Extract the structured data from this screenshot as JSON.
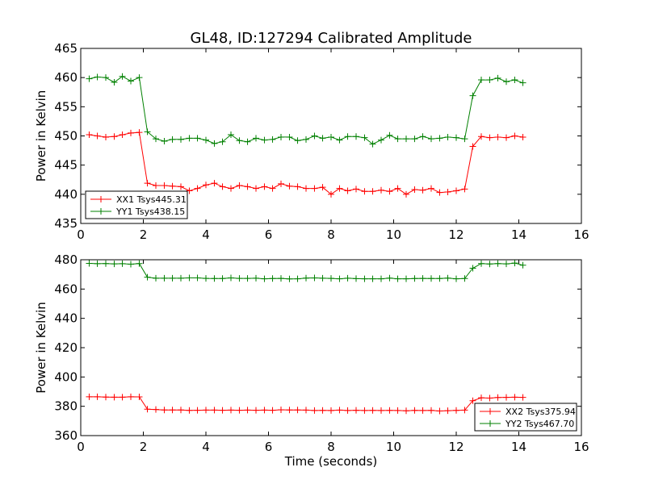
{
  "chart_data": [
    {
      "type": "line",
      "title": "GL48, ID:127294 Calibrated Amplitude",
      "xlabel": "",
      "ylabel": "Power in Kelvin",
      "xlim": [
        0,
        16
      ],
      "ylim": [
        435,
        465
      ],
      "xticks": [
        0,
        2,
        4,
        6,
        8,
        10,
        12,
        14,
        16
      ],
      "yticks": [
        435,
        440,
        445,
        450,
        455,
        460,
        465
      ],
      "grid": false,
      "legend": "lower-left",
      "x": [
        0.27,
        0.53,
        0.8,
        1.07,
        1.33,
        1.6,
        1.87,
        2.13,
        2.4,
        2.67,
        2.93,
        3.2,
        3.47,
        3.73,
        4.0,
        4.27,
        4.53,
        4.8,
        5.07,
        5.33,
        5.6,
        5.87,
        6.13,
        6.4,
        6.67,
        6.93,
        7.2,
        7.47,
        7.73,
        8.0,
        8.27,
        8.53,
        8.8,
        9.07,
        9.33,
        9.6,
        9.87,
        10.13,
        10.4,
        10.67,
        10.93,
        11.2,
        11.47,
        11.73,
        12.0,
        12.27,
        12.53,
        12.8,
        13.07,
        13.33,
        13.6,
        13.87,
        14.13
      ],
      "series": [
        {
          "name": "XX1 Tsys445.31",
          "color": "#ff0000",
          "values": [
            450.2,
            450.0,
            449.8,
            449.9,
            450.2,
            450.5,
            450.6,
            441.9,
            441.5,
            441.5,
            441.4,
            441.3,
            440.6,
            441.0,
            441.6,
            441.9,
            441.3,
            441.0,
            441.5,
            441.3,
            441.0,
            441.3,
            441.0,
            441.8,
            441.4,
            441.3,
            441.0,
            441.0,
            441.2,
            440.0,
            441.0,
            440.6,
            440.9,
            440.5,
            440.5,
            440.7,
            440.5,
            441.0,
            440.0,
            440.8,
            440.7,
            441.0,
            440.3,
            440.4,
            440.6,
            440.9,
            448.2,
            449.9,
            449.7,
            449.8,
            449.7,
            450.0,
            449.8
          ]
        },
        {
          "name": "YY1 Tsys438.15",
          "color": "#008000",
          "values": [
            459.8,
            460.1,
            460.0,
            459.2,
            460.2,
            459.4,
            460.0,
            450.7,
            449.5,
            449.1,
            449.4,
            449.4,
            449.6,
            449.6,
            449.3,
            448.7,
            449.0,
            450.2,
            449.2,
            449.0,
            449.6,
            449.3,
            449.4,
            449.8,
            449.8,
            449.2,
            449.4,
            450.0,
            449.6,
            449.8,
            449.3,
            449.9,
            449.9,
            449.7,
            448.6,
            449.3,
            450.1,
            449.5,
            449.5,
            449.5,
            449.9,
            449.5,
            449.6,
            449.8,
            449.7,
            449.5,
            456.9,
            459.6,
            459.6,
            459.9,
            459.3,
            459.6,
            459.1
          ]
        }
      ]
    },
    {
      "type": "line",
      "title": "",
      "xlabel": "Time (seconds)",
      "ylabel": "Power in Kelvin",
      "xlim": [
        0,
        16
      ],
      "ylim": [
        360,
        480
      ],
      "xticks": [
        0,
        2,
        4,
        6,
        8,
        10,
        12,
        14,
        16
      ],
      "yticks": [
        360,
        380,
        400,
        420,
        440,
        460,
        480
      ],
      "grid": false,
      "legend": "lower-right",
      "x": [
        0.27,
        0.53,
        0.8,
        1.07,
        1.33,
        1.6,
        1.87,
        2.13,
        2.4,
        2.67,
        2.93,
        3.2,
        3.47,
        3.73,
        4.0,
        4.27,
        4.53,
        4.8,
        5.07,
        5.33,
        5.6,
        5.87,
        6.13,
        6.4,
        6.67,
        6.93,
        7.2,
        7.47,
        7.73,
        8.0,
        8.27,
        8.53,
        8.8,
        9.07,
        9.33,
        9.6,
        9.87,
        10.13,
        10.4,
        10.67,
        10.93,
        11.2,
        11.47,
        11.73,
        12.0,
        12.27,
        12.53,
        12.8,
        13.07,
        13.33,
        13.6,
        13.87,
        14.13
      ],
      "series": [
        {
          "name": "XX2 Tsys375.94",
          "color": "#ff0000",
          "values": [
            386.5,
            386.5,
            386.3,
            386.2,
            386.2,
            386.5,
            386.4,
            378.0,
            377.8,
            377.5,
            377.5,
            377.5,
            377.2,
            377.3,
            377.4,
            377.4,
            377.3,
            377.4,
            377.3,
            377.4,
            377.3,
            377.4,
            377.3,
            377.6,
            377.5,
            377.5,
            377.4,
            377.1,
            377.2,
            377.1,
            377.4,
            377.1,
            377.3,
            377.1,
            377.2,
            377.1,
            377.2,
            377.1,
            376.9,
            377.2,
            377.1,
            377.2,
            376.8,
            377.0,
            377.2,
            377.4,
            383.8,
            385.8,
            385.6,
            386.0,
            386.1,
            386.2,
            386.1
          ]
        },
        {
          "name": "YY2 Tsys467.70",
          "color": "#008000",
          "values": [
            477.5,
            477.3,
            477.4,
            477.2,
            477.3,
            477.0,
            477.4,
            468.1,
            467.4,
            467.4,
            467.4,
            467.4,
            467.6,
            467.6,
            467.3,
            467.2,
            467.2,
            467.6,
            467.3,
            467.3,
            467.4,
            467.0,
            467.2,
            467.3,
            466.9,
            467.0,
            467.5,
            467.6,
            467.4,
            467.3,
            467.0,
            467.4,
            467.1,
            467.0,
            467.0,
            467.0,
            467.5,
            467.0,
            467.0,
            467.2,
            467.3,
            467.2,
            467.2,
            467.5,
            467.0,
            467.2,
            474.2,
            477.4,
            477.1,
            477.4,
            477.2,
            477.7,
            476.3
          ]
        }
      ]
    }
  ]
}
